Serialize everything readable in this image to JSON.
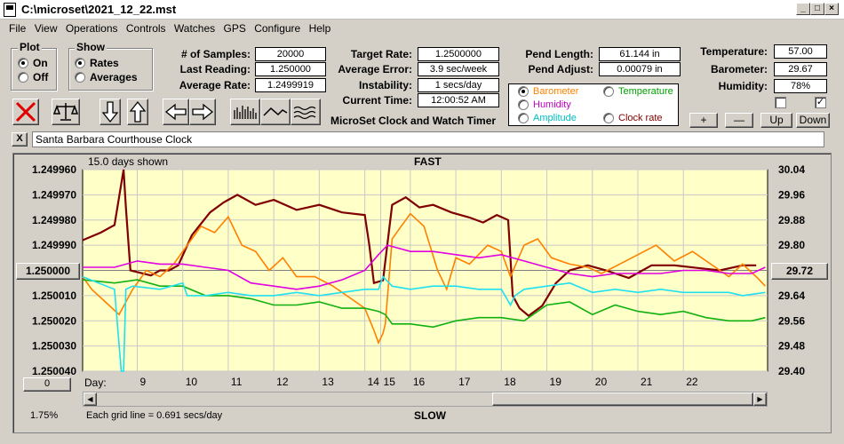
{
  "window": {
    "title": "C:\\microset\\2021_12_22.mst",
    "min": "_",
    "max": "□",
    "close": "×"
  },
  "menu": [
    "File",
    "View",
    "Operations",
    "Controls",
    "Watches",
    "GPS",
    "Configure",
    "Help"
  ],
  "plot_group": {
    "title": "Plot",
    "on": "On",
    "off": "Off",
    "selected": "On"
  },
  "show_group": {
    "title": "Show",
    "rates": "Rates",
    "averages": "Averages",
    "selected": "Rates"
  },
  "stats": {
    "samples_label": "# of Samples:",
    "samples": "20000",
    "last_label": "Last Reading:",
    "last": "1.250000",
    "avg_label": "Average Rate:",
    "avg": "1.2499919",
    "target_label": "Target Rate:",
    "target": "1.2500000",
    "error_label": "Average Error:",
    "error": "3.9 sec/week",
    "instab_label": "Instability:",
    "instab": "1 secs/day",
    "time_label": "Current Time:",
    "time": "12:00:52 AM",
    "pend_len_label": "Pend Length:",
    "pend_len": "61.144 in",
    "pend_adj_label": "Pend Adjust:",
    "pend_adj": "0.00079 in"
  },
  "environment": {
    "temp_label": "Temperature:",
    "temp": "57.00",
    "baro_label": "Barometer:",
    "baro": "29.67",
    "humid_label": "Humidity:",
    "humid": "78%",
    "checkbox_left_checked": false,
    "checkbox_right_checked": true,
    "plus": "+",
    "minus": "—",
    "up": "Up",
    "down": "Down"
  },
  "app_title": "MicroSet Clock and Watch Timer",
  "legend": {
    "barometer": "Barometer",
    "temperature": "Temperature",
    "humidity": "Humidity",
    "amplitude": "Amplitude",
    "clock_rate": "Clock rate",
    "selected": "Barometer",
    "colors": {
      "barometer": "#ff8000",
      "temperature": "#00a000",
      "humidity": "#c000c0",
      "amplitude": "#00c0c0",
      "clock_rate": "#800000"
    }
  },
  "clock_name": {
    "close": "X",
    "value": "Santa Barbara Courthouse Clock"
  },
  "chart_labels": {
    "days_shown": "15.0 days shown",
    "fast": "FAST",
    "slow": "SLOW",
    "grid_note": "Each grid line = 0.691 secs/day",
    "day_label": "Day:",
    "left_btn": "1.250000",
    "right_btn": "29.72",
    "bottom_btn": "0",
    "percent": "1.75%"
  },
  "chart_data": {
    "type": "line",
    "left_axis": {
      "ticks": [
        "1.249960",
        "1.249970",
        "1.249980",
        "1.249990",
        "1.250000",
        "1.250010",
        "1.250020",
        "1.250030",
        "1.250040"
      ],
      "ylim": [
        1.24996,
        1.25004
      ],
      "inverted": true
    },
    "right_axis": {
      "ticks": [
        "30.04",
        "29.96",
        "29.88",
        "29.80",
        "29.72",
        "29.64",
        "29.56",
        "29.48",
        "29.40"
      ],
      "ylim": [
        29.4,
        30.04
      ]
    },
    "x_ticks": [
      "9",
      "10",
      "11",
      "12",
      "13",
      "14",
      "15",
      "16",
      "17",
      "18",
      "19",
      "20",
      "21",
      "22"
    ],
    "x_tick_days": [
      9,
      10,
      11,
      12,
      13,
      14,
      14.35,
      15,
      16,
      17,
      18,
      19,
      20,
      21
    ],
    "xlim": [
      7.8,
      22.85
    ],
    "plot_background": "#ffffc8",
    "series": [
      {
        "name": "Clock rate",
        "color": "#800000",
        "axis": "left",
        "x": [
          7.8,
          8.2,
          8.5,
          8.7,
          8.75,
          8.85,
          9.3,
          9.5,
          9.7,
          9.9,
          10.2,
          10.6,
          10.9,
          11.2,
          11.6,
          12.0,
          12.5,
          13.0,
          13.5,
          14.0,
          14.1,
          14.2,
          14.4,
          14.6,
          14.9,
          15.2,
          15.5,
          15.9,
          16.3,
          16.6,
          16.9,
          17.15,
          17.25,
          17.4,
          17.6,
          17.9,
          18.2,
          18.5,
          18.9,
          19.3,
          19.8,
          20.3,
          20.8,
          21.3,
          21.8,
          22.3,
          22.6
        ],
        "y": [
          1.249988,
          1.249985,
          1.249982,
          1.24996,
          1.249975,
          1.25,
          1.250002,
          1.25,
          1.25,
          1.249998,
          1.249986,
          1.249977,
          1.249973,
          1.24997,
          1.249974,
          1.249972,
          1.249976,
          1.249974,
          1.249977,
          1.249978,
          1.24999,
          1.250005,
          1.250004,
          1.249974,
          1.249971,
          1.249975,
          1.249974,
          1.249977,
          1.249979,
          1.249981,
          1.249978,
          1.24998,
          1.25001,
          1.250015,
          1.250018,
          1.250014,
          1.250005,
          1.25,
          1.249998,
          1.25,
          1.250003,
          1.249998,
          1.249998,
          1.249999,
          1.25,
          1.249998,
          1.249998
        ]
      },
      {
        "name": "Barometer",
        "color": "#ff8000",
        "axis": "right",
        "x": [
          7.8,
          8.0,
          8.3,
          8.6,
          8.9,
          9.2,
          9.5,
          9.8,
          10.1,
          10.4,
          10.7,
          11.0,
          11.3,
          11.6,
          11.9,
          12.2,
          12.5,
          12.9,
          13.3,
          13.7,
          14.0,
          14.2,
          14.3,
          14.4,
          14.45,
          14.6,
          14.8,
          15.0,
          15.3,
          15.6,
          15.8,
          16.0,
          16.3,
          16.7,
          17.0,
          17.2,
          17.5,
          17.8,
          18.1,
          18.5,
          18.9,
          19.2,
          19.6,
          20.0,
          20.4,
          20.8,
          21.2,
          21.6,
          22.0,
          22.3,
          22.6,
          22.8
        ],
        "y": [
          29.7,
          29.66,
          29.62,
          29.58,
          29.66,
          29.72,
          29.7,
          29.74,
          29.8,
          29.86,
          29.84,
          29.89,
          29.8,
          29.78,
          29.72,
          29.76,
          29.7,
          29.7,
          29.67,
          29.63,
          29.6,
          29.53,
          29.49,
          29.52,
          29.55,
          29.82,
          29.86,
          29.9,
          29.86,
          29.72,
          29.66,
          29.76,
          29.74,
          29.8,
          29.78,
          29.7,
          29.8,
          29.82,
          29.76,
          29.74,
          29.73,
          29.71,
          29.74,
          29.77,
          29.8,
          29.75,
          29.78,
          29.74,
          29.7,
          29.74,
          29.7,
          29.67
        ]
      },
      {
        "name": "Humidity",
        "color": "#e000e0",
        "axis": "right",
        "x": [
          7.8,
          8.5,
          9.0,
          9.5,
          10.0,
          10.5,
          11.0,
          11.5,
          12.0,
          12.5,
          13.0,
          13.5,
          14.0,
          14.3,
          14.5,
          15.0,
          15.5,
          16.0,
          16.5,
          17.0,
          17.5,
          18.0,
          18.5,
          19.0,
          19.5,
          20.0,
          20.5,
          21.0,
          21.5,
          22.0,
          22.5,
          22.8
        ],
        "y": [
          29.73,
          29.73,
          29.75,
          29.74,
          29.74,
          29.73,
          29.72,
          29.68,
          29.67,
          29.66,
          29.67,
          29.69,
          29.72,
          29.77,
          29.8,
          29.78,
          29.78,
          29.77,
          29.76,
          29.77,
          29.75,
          29.73,
          29.71,
          29.7,
          29.71,
          29.71,
          29.71,
          29.72,
          29.72,
          29.71,
          29.71,
          29.73
        ]
      },
      {
        "name": "Temperature",
        "color": "#10b010",
        "axis": "right",
        "x": [
          7.8,
          8.5,
          9.0,
          9.5,
          10.0,
          10.5,
          11.0,
          11.5,
          12.0,
          12.5,
          13.0,
          13.5,
          14.0,
          14.3,
          14.45,
          14.6,
          15.0,
          15.5,
          16.0,
          16.5,
          17.0,
          17.5,
          18.0,
          18.5,
          19.0,
          19.5,
          20.0,
          20.5,
          21.0,
          21.5,
          22.0,
          22.5,
          22.8
        ],
        "y": [
          29.69,
          29.68,
          29.69,
          29.67,
          29.67,
          29.64,
          29.64,
          29.63,
          29.61,
          29.61,
          29.62,
          29.6,
          29.6,
          29.59,
          29.58,
          29.55,
          29.55,
          29.54,
          29.56,
          29.57,
          29.57,
          29.56,
          29.61,
          29.62,
          29.58,
          29.61,
          29.59,
          29.58,
          29.59,
          29.57,
          29.56,
          29.56,
          29.57
        ]
      },
      {
        "name": "Amplitude",
        "color": "#20e0f0",
        "axis": "right",
        "x": [
          7.8,
          8.5,
          8.65,
          8.7,
          8.75,
          8.9,
          9.5,
          10.0,
          10.1,
          10.5,
          11.0,
          11.5,
          12.0,
          12.5,
          13.0,
          13.5,
          14.0,
          14.3,
          14.4,
          14.6,
          15.0,
          15.5,
          16.0,
          16.5,
          17.0,
          17.2,
          17.3,
          17.5,
          18.0,
          18.5,
          19.0,
          19.5,
          20.0,
          20.5,
          21.0,
          21.5,
          22.0,
          22.3,
          22.8
        ],
        "y": [
          29.7,
          29.66,
          29.4,
          29.4,
          29.66,
          29.67,
          29.66,
          29.68,
          29.64,
          29.64,
          29.65,
          29.64,
          29.64,
          29.65,
          29.64,
          29.65,
          29.66,
          29.66,
          29.7,
          29.67,
          29.66,
          29.67,
          29.67,
          29.66,
          29.66,
          29.61,
          29.64,
          29.66,
          29.67,
          29.68,
          29.65,
          29.66,
          29.65,
          29.66,
          29.65,
          29.65,
          29.65,
          29.64,
          29.65
        ]
      }
    ]
  }
}
